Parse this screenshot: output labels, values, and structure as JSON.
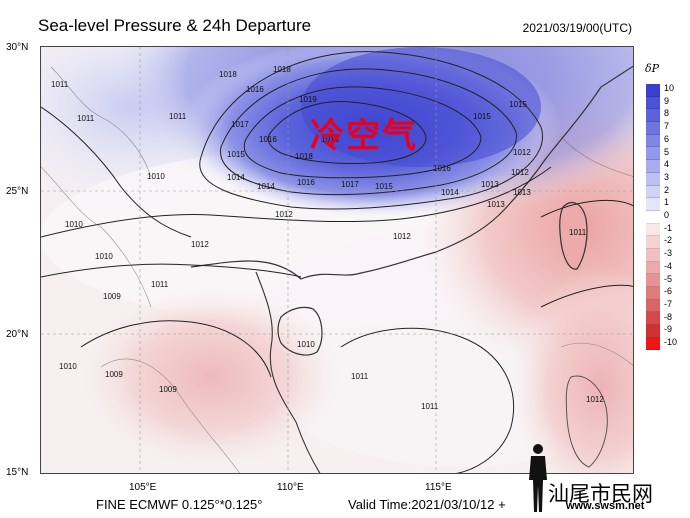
{
  "header": {
    "title": "Sea-level Pressure & 24h Departure",
    "datetime": "2021/03/19/00(UTC)"
  },
  "axes": {
    "lat_labels": [
      "30°N",
      "25°N",
      "20°N",
      "15°N"
    ],
    "lon_labels": [
      "105°E",
      "110°E",
      "115°E"
    ]
  },
  "colorbar": {
    "title": "δP",
    "levels": [
      "10",
      "9",
      "8",
      "7",
      "6",
      "5",
      "4",
      "3",
      "2",
      "1",
      "0",
      "-1",
      "-2",
      "-3",
      "-4",
      "-5",
      "-6",
      "-7",
      "-8",
      "-9",
      "-10"
    ],
    "colors": [
      "#3a3fcf",
      "#4a52d6",
      "#5a63dc",
      "#6d75e0",
      "#7f86e5",
      "#9399ea",
      "#a8adef",
      "#bcc0f2",
      "#d0d2f6",
      "#e4e5fa",
      "#ffffff",
      "#f8e8e8",
      "#f5d3d3",
      "#efc0c0",
      "#eaaaaa",
      "#e59393",
      "#e07b7b",
      "#db6464",
      "#d44a4a",
      "#cf3030",
      "#f21515"
    ]
  },
  "isobars": {
    "labels": [
      "1016",
      "1018",
      "1018",
      "1019",
      "1017",
      "1016",
      "1015",
      "1014",
      "1014",
      "1016",
      "1018",
      "1018",
      "1017",
      "1015",
      "1016",
      "1015",
      "1014",
      "1013",
      "1012",
      "1012",
      "1012",
      "1013",
      "1011",
      "1011",
      "1011",
      "1010",
      "1010",
      "1010",
      "1009",
      "1009",
      "1009",
      "1010",
      "1011",
      "1012",
      "1013",
      "1010",
      "1011",
      "1012",
      "1012",
      "1011",
      "1015",
      "1011"
    ]
  },
  "annotation": {
    "text": "冷空气"
  },
  "footer": {
    "model": "FINE ECMWF 0.125°*0.125°",
    "valid_time": "Valid Time:2021/03/10/12 +"
  },
  "watermark": {
    "name": "汕尾市民网",
    "url": "www.swsm.net"
  }
}
